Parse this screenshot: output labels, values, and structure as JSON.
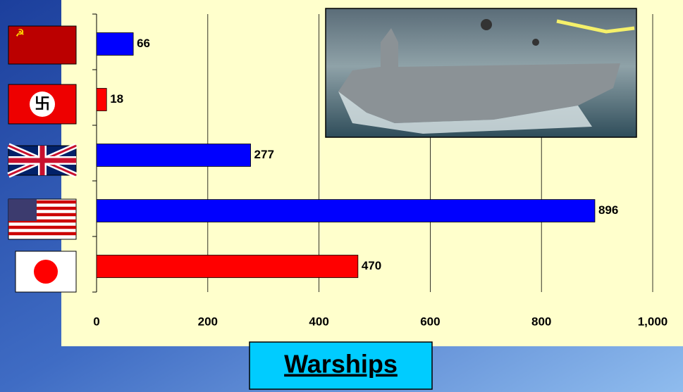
{
  "chart_data": {
    "type": "hbar",
    "title": "Warships",
    "categories": [
      null,
      null,
      null,
      null,
      null
    ],
    "values": [
      66,
      18,
      277,
      896,
      470
    ],
    "colors": [
      "#0000ff",
      "#ff0000",
      "#0000ff",
      "#0000ff",
      "#ff0000"
    ],
    "xlim": [
      0,
      1000
    ],
    "xticks": [
      0,
      200,
      400,
      600,
      800,
      {
        "value": 1000,
        "label": "1,000"
      }
    ],
    "grid": true
  }
}
